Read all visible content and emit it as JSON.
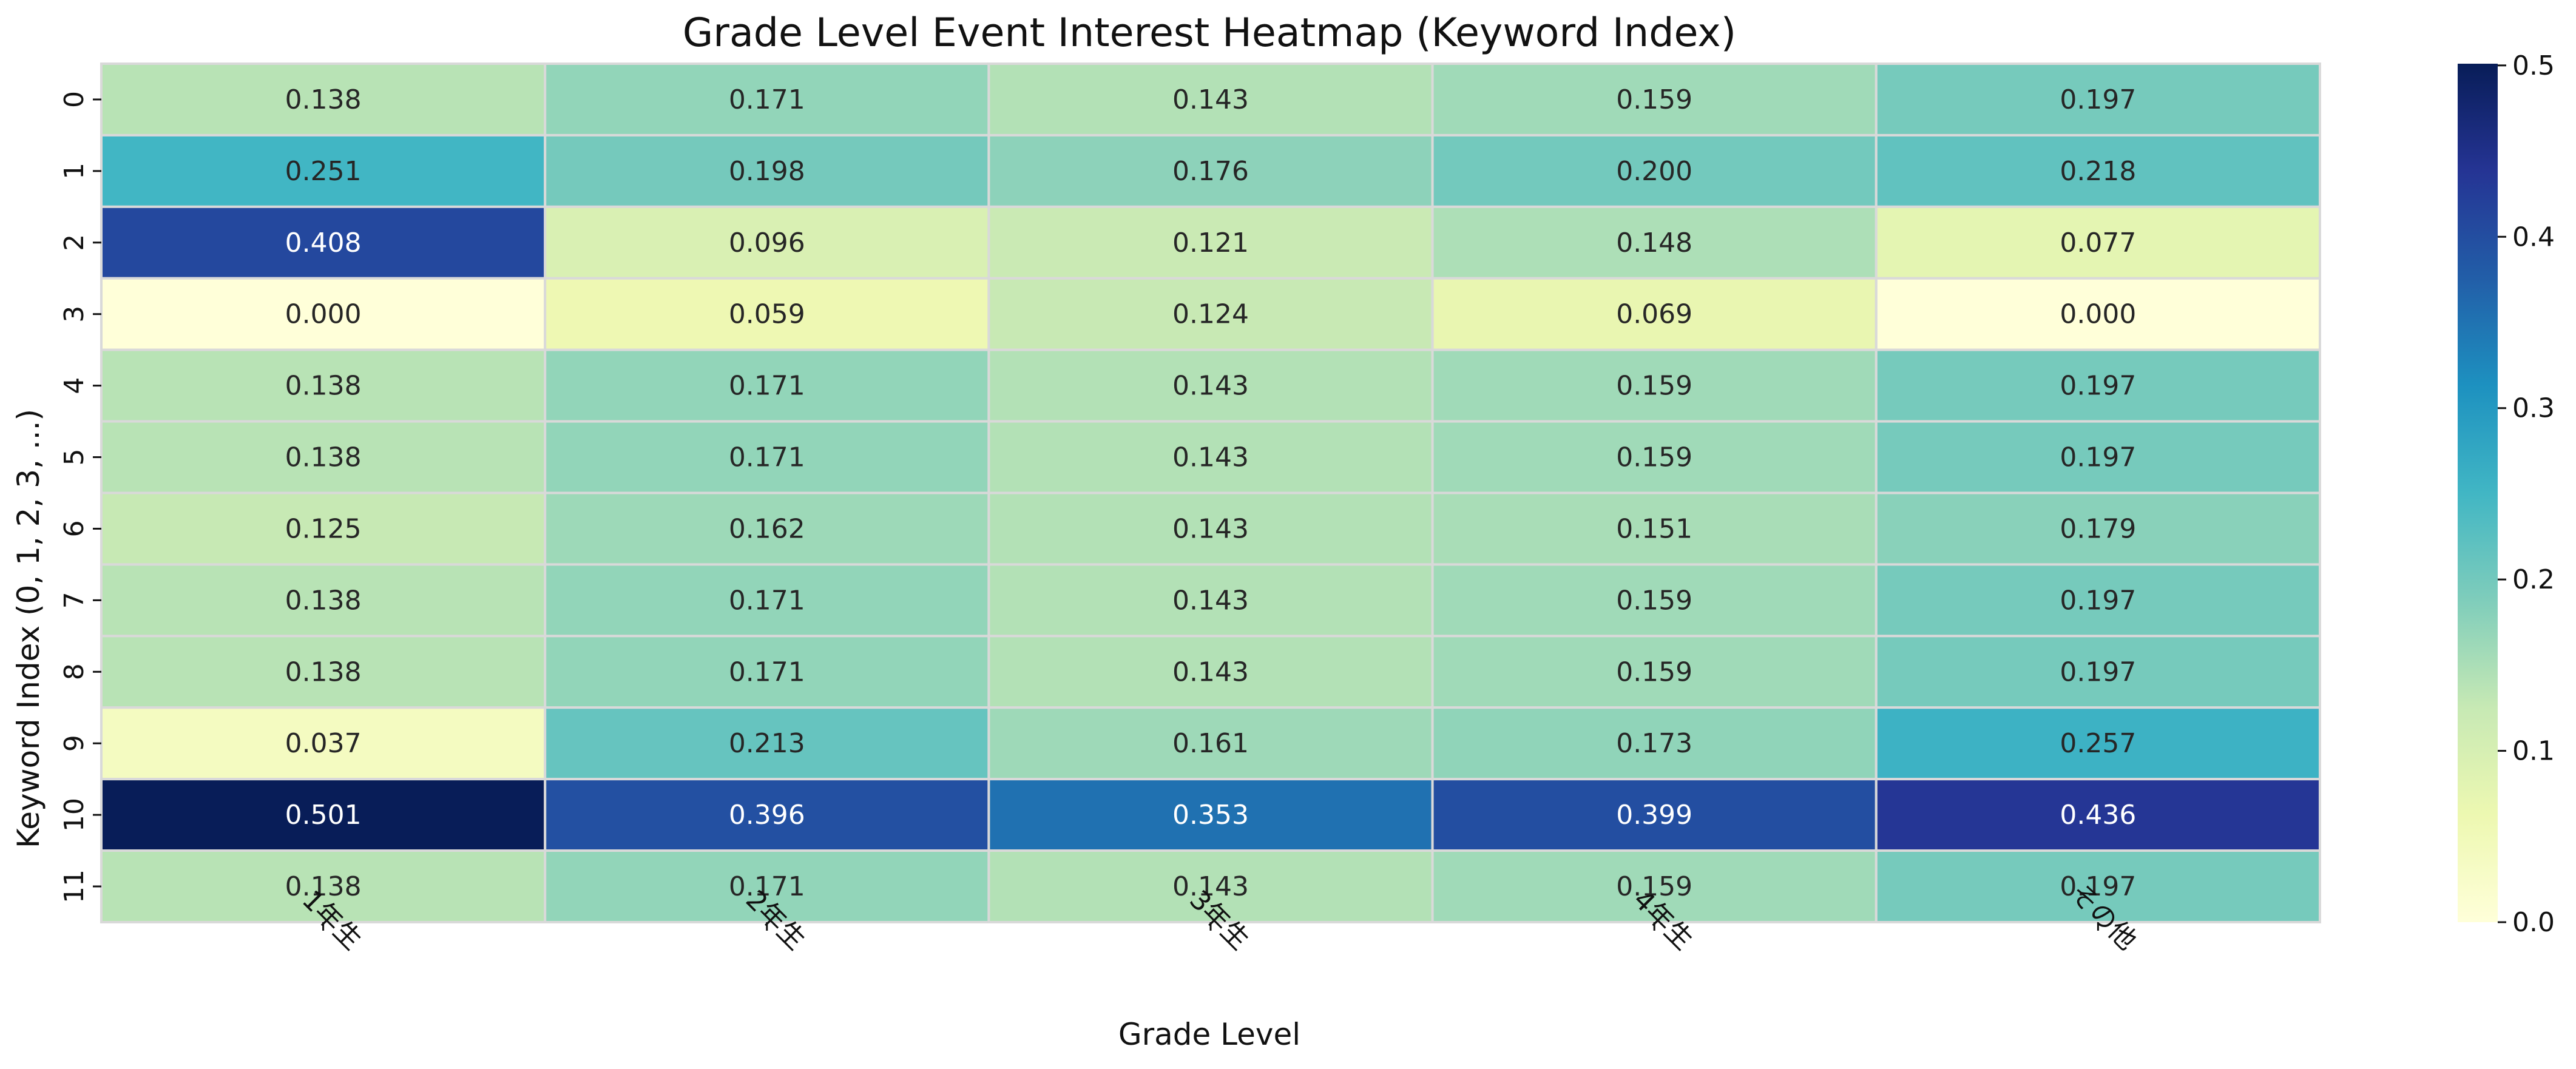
{
  "chart_data": {
    "type": "heatmap",
    "title": "Grade Level Event Interest Heatmap (Keyword Index)",
    "xlabel": "Grade Level",
    "ylabel": "Keyword Index (0, 1, 2, 3, ...)",
    "x_categories": [
      "1年生",
      "2年生",
      "3年生",
      "4年生",
      "その他"
    ],
    "y_categories": [
      "0",
      "1",
      "2",
      "3",
      "4",
      "5",
      "6",
      "7",
      "8",
      "9",
      "10",
      "11"
    ],
    "values": [
      [
        0.138,
        0.171,
        0.143,
        0.159,
        0.197
      ],
      [
        0.251,
        0.198,
        0.176,
        0.2,
        0.218
      ],
      [
        0.408,
        0.096,
        0.121,
        0.148,
        0.077
      ],
      [
        0.0,
        0.059,
        0.124,
        0.069,
        0.0
      ],
      [
        0.138,
        0.171,
        0.143,
        0.159,
        0.197
      ],
      [
        0.138,
        0.171,
        0.143,
        0.159,
        0.197
      ],
      [
        0.125,
        0.162,
        0.143,
        0.151,
        0.179
      ],
      [
        0.138,
        0.171,
        0.143,
        0.159,
        0.197
      ],
      [
        0.138,
        0.171,
        0.143,
        0.159,
        0.197
      ],
      [
        0.037,
        0.213,
        0.161,
        0.173,
        0.257
      ],
      [
        0.501,
        0.396,
        0.353,
        0.399,
        0.436
      ],
      [
        0.138,
        0.171,
        0.143,
        0.159,
        0.197
      ]
    ],
    "value_format": "0.000",
    "colormap": "YlGnBu",
    "colorbar": {
      "min": 0.0,
      "max": 0.501,
      "ticks": [
        "0.0",
        "0.1",
        "0.2",
        "0.3",
        "0.4",
        "0.5"
      ]
    },
    "cell_border_color": "#d9d9d9",
    "grid": false
  }
}
